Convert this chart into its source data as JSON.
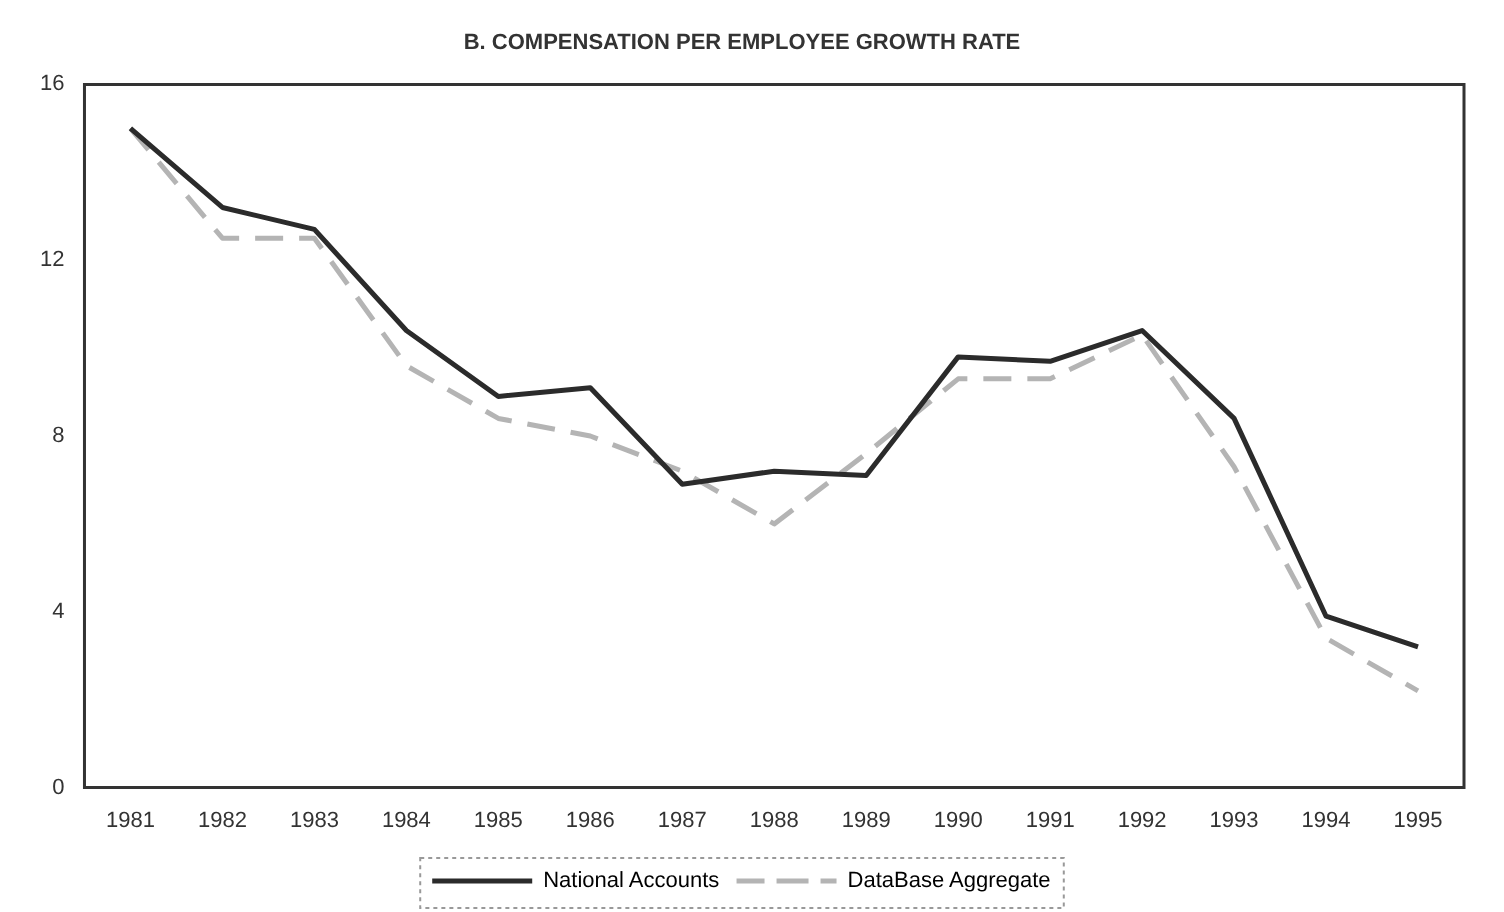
{
  "chart_data": {
    "type": "line",
    "title": "B. COMPENSATION PER EMPLOYEE GROWTH RATE",
    "categories": [
      "1981",
      "1982",
      "1983",
      "1984",
      "1985",
      "1986",
      "1987",
      "1988",
      "1989",
      "1990",
      "1991",
      "1992",
      "1993",
      "1994",
      "1995"
    ],
    "series": [
      {
        "name": "National Accounts",
        "color": "#2b2b2b",
        "line_style": "solid",
        "values": [
          15.0,
          13.2,
          12.7,
          10.4,
          8.9,
          9.1,
          6.9,
          7.2,
          7.1,
          9.8,
          9.7,
          10.4,
          8.4,
          3.9,
          3.2
        ]
      },
      {
        "name": "DataBase Aggregate",
        "color": "#b4b4b4",
        "line_style": "dashed",
        "values": [
          15.0,
          12.5,
          12.5,
          9.6,
          8.4,
          8.0,
          7.2,
          6.0,
          7.6,
          9.3,
          9.3,
          10.3,
          7.3,
          3.4,
          2.2
        ]
      }
    ],
    "ylim": [
      0,
      16
    ],
    "yticks": [
      0,
      4,
      8,
      12,
      16
    ],
    "grid": false,
    "legend": "bottom",
    "marker": "none"
  }
}
